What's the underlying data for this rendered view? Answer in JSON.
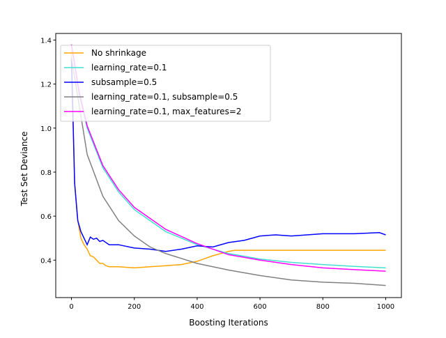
{
  "chart_data": {
    "type": "line",
    "title": "",
    "xlabel": "Boosting Iterations",
    "ylabel": "Test Set Deviance",
    "xlim": [
      -50,
      1050
    ],
    "ylim": [
      0.23,
      1.43
    ],
    "xticks": [
      0,
      200,
      400,
      600,
      800,
      1000
    ],
    "yticks": [
      0.4,
      0.6,
      0.8,
      1.0,
      1.2,
      1.4
    ],
    "ytick_labels": [
      "0.4",
      "0.6",
      "0.8",
      "1.0",
      "1.2",
      "1.4"
    ],
    "grid": false,
    "legend_position": "top-left",
    "series": [
      {
        "name": "No shrinkage",
        "color": "#ffa500",
        "x": [
          0,
          10,
          20,
          30,
          40,
          50,
          60,
          70,
          80,
          90,
          100,
          110,
          120,
          150,
          200,
          250,
          300,
          350,
          400,
          450,
          500,
          520,
          600,
          700,
          800,
          900,
          1000
        ],
        "y": [
          1.35,
          0.75,
          0.58,
          0.5,
          0.47,
          0.45,
          0.42,
          0.415,
          0.4,
          0.385,
          0.385,
          0.375,
          0.37,
          0.37,
          0.365,
          0.37,
          0.375,
          0.38,
          0.395,
          0.42,
          0.44,
          0.445,
          0.445,
          0.445,
          0.445,
          0.445,
          0.445
        ]
      },
      {
        "name": "learning_rate=0.1",
        "color": "#40e0d0",
        "x": [
          0,
          25,
          50,
          100,
          150,
          200,
          300,
          400,
          500,
          600,
          700,
          800,
          900,
          1000
        ],
        "y": [
          1.38,
          1.15,
          1.0,
          0.82,
          0.71,
          0.63,
          0.53,
          0.47,
          0.43,
          0.405,
          0.39,
          0.38,
          0.372,
          0.365
        ]
      },
      {
        "name": "subsample=0.5",
        "color": "#0000ff",
        "x": [
          0,
          10,
          20,
          30,
          50,
          60,
          70,
          80,
          90,
          100,
          120,
          150,
          200,
          250,
          300,
          350,
          400,
          450,
          500,
          550,
          600,
          650,
          700,
          800,
          900,
          980,
          1000
        ],
        "y": [
          1.32,
          0.75,
          0.58,
          0.53,
          0.47,
          0.505,
          0.495,
          0.5,
          0.485,
          0.49,
          0.47,
          0.47,
          0.455,
          0.45,
          0.44,
          0.45,
          0.465,
          0.46,
          0.48,
          0.49,
          0.51,
          0.515,
          0.51,
          0.52,
          0.52,
          0.525,
          0.515
        ]
      },
      {
        "name": "learning_rate=0.1, subsample=0.5",
        "color": "#808080",
        "x": [
          0,
          25,
          50,
          100,
          150,
          200,
          250,
          300,
          400,
          500,
          600,
          700,
          800,
          900,
          1000
        ],
        "y": [
          1.32,
          1.1,
          0.88,
          0.69,
          0.58,
          0.51,
          0.46,
          0.43,
          0.385,
          0.355,
          0.33,
          0.31,
          0.3,
          0.295,
          0.285
        ]
      },
      {
        "name": "learning_rate=0.1, max_features=2",
        "color": "#ff00ff",
        "x": [
          0,
          25,
          50,
          100,
          150,
          200,
          300,
          400,
          500,
          600,
          700,
          800,
          900,
          1000
        ],
        "y": [
          1.38,
          1.16,
          1.01,
          0.83,
          0.72,
          0.64,
          0.54,
          0.475,
          0.425,
          0.4,
          0.38,
          0.365,
          0.357,
          0.35
        ]
      }
    ]
  }
}
